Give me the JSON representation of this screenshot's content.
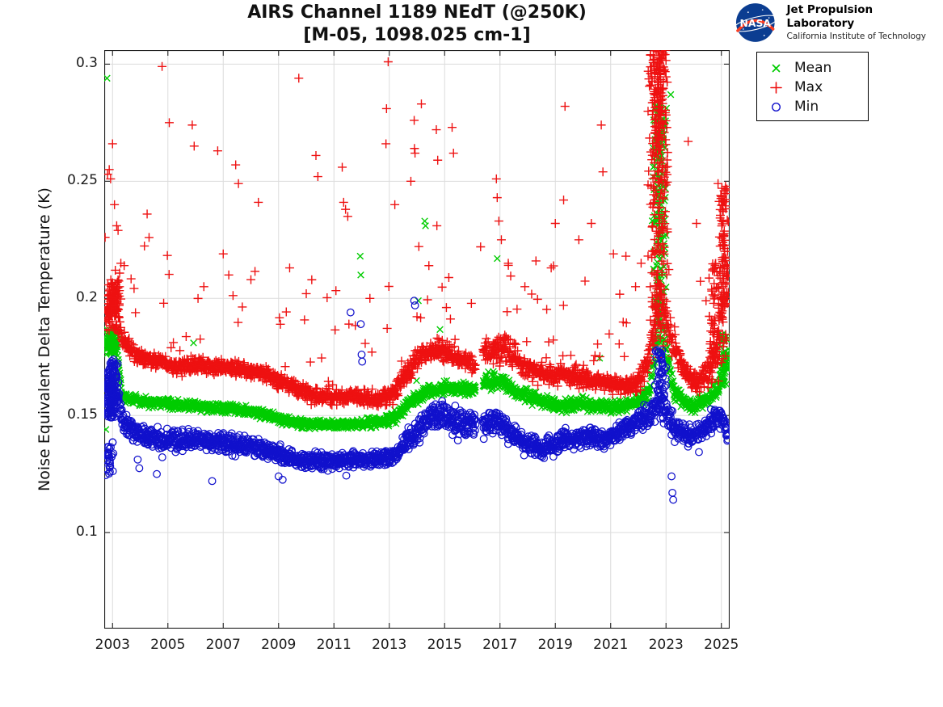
{
  "header": {
    "logo": {
      "org": "NASA",
      "name": "Jet Propulsion Laboratory",
      "sub": "California Institute of Technology"
    }
  },
  "chart_data": {
    "type": "scatter",
    "title": "AIRS Channel 1189 NEdT (@250K)",
    "subtitle": "[M-05, 1098.025 cm-1]",
    "xlabel": "",
    "ylabel": "Noise Equivalent Delta Temperature (K)",
    "xlim": [
      2002.7,
      2025.3
    ],
    "ylim": [
      0.059,
      0.306
    ],
    "xticks": [
      "2003",
      "2005",
      "2007",
      "2009",
      "2011",
      "2013",
      "2015",
      "2017",
      "2019",
      "2021",
      "2023",
      "2025"
    ],
    "xtick_values": [
      2003,
      2005,
      2007,
      2009,
      2011,
      2013,
      2015,
      2017,
      2019,
      2021,
      2023,
      2025
    ],
    "yticks": [
      "0.1",
      "0.15",
      "0.2",
      "0.25",
      "0.3"
    ],
    "ytick_values": [
      0.1,
      0.15,
      0.2,
      0.25,
      0.3
    ],
    "grid": true,
    "grid_color": "#dcdcdc",
    "axis_color": "#222222",
    "legend_position": "outside-top-right",
    "time_range": [
      2002.73,
      2025.25
    ],
    "gaps": [
      [
        2016.12,
        2016.38
      ]
    ],
    "points_per_series": 2100,
    "seed": 42,
    "series": [
      {
        "name": "Mean",
        "marker": "x",
        "color": "#00cc00",
        "tail": {
          "prob": 0.006,
          "max": 0.03
        },
        "band_anchors": [
          [
            2002.73,
            0.181,
            0.004
          ],
          [
            2003.15,
            0.179,
            0.004
          ],
          [
            2003.35,
            0.158,
            0.003
          ],
          [
            2004.0,
            0.156,
            0.003
          ],
          [
            2005.0,
            0.155,
            0.003
          ],
          [
            2006.0,
            0.154,
            0.003
          ],
          [
            2007.0,
            0.153,
            0.003
          ],
          [
            2008.0,
            0.152,
            0.003
          ],
          [
            2008.9,
            0.149,
            0.003
          ],
          [
            2009.6,
            0.147,
            0.003
          ],
          [
            2010.6,
            0.146,
            0.003
          ],
          [
            2011.6,
            0.146,
            0.003
          ],
          [
            2012.6,
            0.147,
            0.003
          ],
          [
            2013.2,
            0.149,
            0.004
          ],
          [
            2013.8,
            0.156,
            0.004
          ],
          [
            2014.4,
            0.16,
            0.004
          ],
          [
            2015.0,
            0.162,
            0.004
          ],
          [
            2015.9,
            0.161,
            0.004
          ],
          [
            2016.6,
            0.164,
            0.005
          ],
          [
            2017.1,
            0.165,
            0.005
          ],
          [
            2017.6,
            0.16,
            0.004
          ],
          [
            2018.3,
            0.157,
            0.004
          ],
          [
            2019.1,
            0.154,
            0.004
          ],
          [
            2019.9,
            0.155,
            0.004
          ],
          [
            2020.7,
            0.154,
            0.004
          ],
          [
            2021.4,
            0.154,
            0.004
          ],
          [
            2022.0,
            0.156,
            0.004
          ],
          [
            2022.4,
            0.16,
            0.006
          ],
          [
            2022.75,
            0.19,
            0.02
          ],
          [
            2023.05,
            0.175,
            0.01
          ],
          [
            2023.3,
            0.16,
            0.005
          ],
          [
            2023.9,
            0.154,
            0.004
          ],
          [
            2024.5,
            0.157,
            0.004
          ],
          [
            2024.9,
            0.162,
            0.006
          ],
          [
            2025.1,
            0.17,
            0.008
          ],
          [
            2025.25,
            0.175,
            0.007
          ]
        ],
        "columns": [
          {
            "from": 2002.75,
            "to": 2003.25,
            "vmin": 0.176,
            "vmax": 0.187,
            "count": 60,
            "pow": 1
          },
          {
            "from": 2022.5,
            "to": 2023.02,
            "vmin": 0.175,
            "vmax": 0.282,
            "count": 170,
            "pow": 0.7
          },
          {
            "from": 2024.95,
            "to": 2025.25,
            "vmin": 0.162,
            "vmax": 0.186,
            "count": 40,
            "pow": 0.85
          }
        ],
        "outliers": [
          [
            2002.8,
            0.294
          ],
          [
            2002.76,
            0.144
          ],
          [
            2011.95,
            0.218
          ],
          [
            2011.97,
            0.21
          ],
          [
            2014.28,
            0.233
          ],
          [
            2014.31,
            0.231
          ],
          [
            2014.05,
            0.199
          ],
          [
            2016.9,
            0.217
          ],
          [
            2023.17,
            0.287
          ]
        ]
      },
      {
        "name": "Max",
        "marker": "+",
        "color": "#ee1111",
        "tail": {
          "prob": 0.055,
          "max": 0.05
        },
        "band_anchors": [
          [
            2002.73,
            0.195,
            0.008
          ],
          [
            2003.15,
            0.195,
            0.008
          ],
          [
            2003.35,
            0.182,
            0.006
          ],
          [
            2003.9,
            0.176,
            0.005
          ],
          [
            2004.5,
            0.173,
            0.005
          ],
          [
            2005.5,
            0.171,
            0.005
          ],
          [
            2006.5,
            0.171,
            0.005
          ],
          [
            2007.5,
            0.17,
            0.005
          ],
          [
            2008.4,
            0.168,
            0.005
          ],
          [
            2009.1,
            0.164,
            0.005
          ],
          [
            2009.9,
            0.16,
            0.005
          ],
          [
            2010.6,
            0.158,
            0.005
          ],
          [
            2011.6,
            0.158,
            0.005
          ],
          [
            2012.6,
            0.157,
            0.005
          ],
          [
            2013.1,
            0.159,
            0.006
          ],
          [
            2013.7,
            0.169,
            0.007
          ],
          [
            2014.2,
            0.177,
            0.007
          ],
          [
            2014.9,
            0.178,
            0.007
          ],
          [
            2015.5,
            0.174,
            0.006
          ],
          [
            2016.1,
            0.172,
            0.006
          ],
          [
            2016.8,
            0.178,
            0.009
          ],
          [
            2017.2,
            0.179,
            0.009
          ],
          [
            2017.8,
            0.171,
            0.006
          ],
          [
            2018.5,
            0.168,
            0.006
          ],
          [
            2019.2,
            0.167,
            0.006
          ],
          [
            2020.0,
            0.166,
            0.006
          ],
          [
            2020.8,
            0.164,
            0.005
          ],
          [
            2021.5,
            0.162,
            0.005
          ],
          [
            2022.0,
            0.164,
            0.006
          ],
          [
            2022.3,
            0.17,
            0.008
          ],
          [
            2022.75,
            0.2,
            0.02
          ],
          [
            2023.05,
            0.19,
            0.012
          ],
          [
            2023.3,
            0.178,
            0.009
          ],
          [
            2023.7,
            0.168,
            0.006
          ],
          [
            2024.2,
            0.164,
            0.006
          ],
          [
            2024.6,
            0.17,
            0.008
          ],
          [
            2024.9,
            0.185,
            0.014
          ],
          [
            2025.1,
            0.205,
            0.018
          ],
          [
            2025.25,
            0.212,
            0.018
          ]
        ],
        "columns": [
          {
            "from": 2002.78,
            "to": 2003.3,
            "vmin": 0.186,
            "vmax": 0.208,
            "count": 80,
            "pow": 1
          },
          {
            "from": 2022.35,
            "to": 2023.08,
            "vmin": 0.172,
            "vmax": 0.307,
            "count": 300,
            "pow": 0.55
          },
          {
            "from": 2024.55,
            "to": 2024.95,
            "vmin": 0.163,
            "vmax": 0.215,
            "count": 60,
            "pow": 0.75
          },
          {
            "from": 2024.9,
            "to": 2025.25,
            "vmin": 0.17,
            "vmax": 0.25,
            "count": 90,
            "pow": 0.72
          }
        ],
        "outliers": [
          [
            2002.82,
            0.253
          ],
          [
            2002.88,
            0.255
          ],
          [
            2002.93,
            0.251
          ],
          [
            2003.0,
            0.266
          ],
          [
            2003.07,
            0.24
          ],
          [
            2003.1,
            0.212
          ],
          [
            2003.15,
            0.231
          ],
          [
            2003.2,
            0.229
          ],
          [
            2003.25,
            0.205
          ],
          [
            2003.3,
            0.215
          ],
          [
            2003.42,
            0.214
          ],
          [
            2004.25,
            0.236
          ],
          [
            2004.32,
            0.226
          ],
          [
            2004.79,
            0.299
          ],
          [
            2005.05,
            0.275
          ],
          [
            2005.88,
            0.274
          ],
          [
            2005.95,
            0.265
          ],
          [
            2006.8,
            0.263
          ],
          [
            2007.0,
            0.219
          ],
          [
            2007.45,
            0.257
          ],
          [
            2007.55,
            0.249
          ],
          [
            2007.2,
            0.21
          ],
          [
            2008.27,
            0.241
          ],
          [
            2009.73,
            0.294
          ],
          [
            2009.4,
            0.213
          ],
          [
            2010.35,
            0.261
          ],
          [
            2010.42,
            0.252
          ],
          [
            2011.3,
            0.256
          ],
          [
            2011.35,
            0.241
          ],
          [
            2011.42,
            0.238
          ],
          [
            2011.5,
            0.235
          ],
          [
            2012.88,
            0.266
          ],
          [
            2012.96,
            0.301
          ],
          [
            2012.9,
            0.281
          ],
          [
            2013.2,
            0.24
          ],
          [
            2013.78,
            0.25
          ],
          [
            2013.9,
            0.276
          ],
          [
            2013.91,
            0.264
          ],
          [
            2013.93,
            0.262
          ],
          [
            2014.16,
            0.283
          ],
          [
            2014.7,
            0.272
          ],
          [
            2014.75,
            0.259
          ],
          [
            2014.72,
            0.231
          ],
          [
            2015.27,
            0.273
          ],
          [
            2015.32,
            0.262
          ],
          [
            2016.87,
            0.251
          ],
          [
            2016.9,
            0.243
          ],
          [
            2016.96,
            0.233
          ],
          [
            2017.05,
            0.225
          ],
          [
            2017.3,
            0.215
          ],
          [
            2018.3,
            0.216
          ],
          [
            2018.85,
            0.213
          ],
          [
            2019.35,
            0.282
          ],
          [
            2019.3,
            0.242
          ],
          [
            2019.85,
            0.225
          ],
          [
            2020.66,
            0.274
          ],
          [
            2020.72,
            0.254
          ],
          [
            2021.1,
            0.219
          ],
          [
            2021.55,
            0.218
          ],
          [
            2023.8,
            0.267
          ],
          [
            2024.1,
            0.232
          ],
          [
            2024.88,
            0.249
          ],
          [
            2025.02,
            0.247
          ],
          [
            2006.3,
            0.205
          ],
          [
            2008.0,
            0.208
          ],
          [
            2010.0,
            0.202
          ],
          [
            2012.3,
            0.2
          ],
          [
            2016.3,
            0.222
          ],
          [
            2017.9,
            0.205
          ],
          [
            2019.0,
            0.232
          ],
          [
            2020.3,
            0.232
          ],
          [
            2021.9,
            0.205
          ],
          [
            2022.1,
            0.215
          ]
        ]
      },
      {
        "name": "Min",
        "marker": "o",
        "color": "#1111cc",
        "tail": {
          "prob": 0.006,
          "max": -0.012
        },
        "band_anchors": [
          [
            2002.73,
            0.161,
            0.012
          ],
          [
            2003.2,
            0.159,
            0.011
          ],
          [
            2003.35,
            0.147,
            0.007
          ],
          [
            2004.0,
            0.142,
            0.006
          ],
          [
            2005.0,
            0.139,
            0.006
          ],
          [
            2006.0,
            0.14,
            0.006
          ],
          [
            2007.0,
            0.138,
            0.006
          ],
          [
            2008.0,
            0.137,
            0.006
          ],
          [
            2008.9,
            0.134,
            0.005
          ],
          [
            2009.6,
            0.131,
            0.005
          ],
          [
            2010.6,
            0.13,
            0.005
          ],
          [
            2011.6,
            0.131,
            0.005
          ],
          [
            2012.6,
            0.131,
            0.005
          ],
          [
            2013.2,
            0.133,
            0.005
          ],
          [
            2013.8,
            0.141,
            0.007
          ],
          [
            2014.4,
            0.149,
            0.008
          ],
          [
            2014.9,
            0.151,
            0.009
          ],
          [
            2015.6,
            0.146,
            0.009
          ],
          [
            2016.1,
            0.146,
            0.008
          ],
          [
            2016.9,
            0.148,
            0.008
          ],
          [
            2017.4,
            0.143,
            0.007
          ],
          [
            2017.9,
            0.138,
            0.006
          ],
          [
            2018.6,
            0.136,
            0.006
          ],
          [
            2019.3,
            0.139,
            0.006
          ],
          [
            2020.1,
            0.141,
            0.006
          ],
          [
            2020.9,
            0.14,
            0.006
          ],
          [
            2021.4,
            0.144,
            0.006
          ],
          [
            2021.9,
            0.147,
            0.006
          ],
          [
            2022.35,
            0.15,
            0.008
          ],
          [
            2022.75,
            0.156,
            0.01
          ],
          [
            2023.05,
            0.151,
            0.009
          ],
          [
            2023.35,
            0.144,
            0.007
          ],
          [
            2023.9,
            0.141,
            0.006
          ],
          [
            2024.35,
            0.144,
            0.006
          ],
          [
            2024.8,
            0.149,
            0.006
          ],
          [
            2025.1,
            0.147,
            0.007
          ],
          [
            2025.25,
            0.14,
            0.005
          ]
        ],
        "columns": [
          {
            "from": 2002.73,
            "to": 2003.2,
            "vmin": 0.149,
            "vmax": 0.174,
            "count": 130,
            "pow": 1
          },
          {
            "from": 2002.73,
            "to": 2003.05,
            "vmin": 0.124,
            "vmax": 0.139,
            "count": 28,
            "pow": 1
          },
          {
            "from": 2022.6,
            "to": 2023.0,
            "vmin": 0.154,
            "vmax": 0.178,
            "count": 45,
            "pow": 0.75
          }
        ],
        "outliers": [
          [
            2011.6,
            0.194
          ],
          [
            2011.97,
            0.189
          ],
          [
            2012.0,
            0.176
          ],
          [
            2012.02,
            0.173
          ],
          [
            2013.9,
            0.199
          ],
          [
            2013.93,
            0.197
          ],
          [
            2023.2,
            0.124
          ],
          [
            2023.23,
            0.117
          ],
          [
            2023.26,
            0.114
          ],
          [
            2006.6,
            0.122
          ],
          [
            2004.6,
            0.125
          ],
          [
            2009.0,
            0.124
          ]
        ]
      }
    ],
    "legend": [
      {
        "label": "Mean",
        "marker": "x",
        "color": "#00cc00"
      },
      {
        "label": "Max",
        "marker": "+",
        "color": "#ee1111"
      },
      {
        "label": "Min",
        "marker": "o",
        "color": "#1111cc"
      }
    ]
  }
}
